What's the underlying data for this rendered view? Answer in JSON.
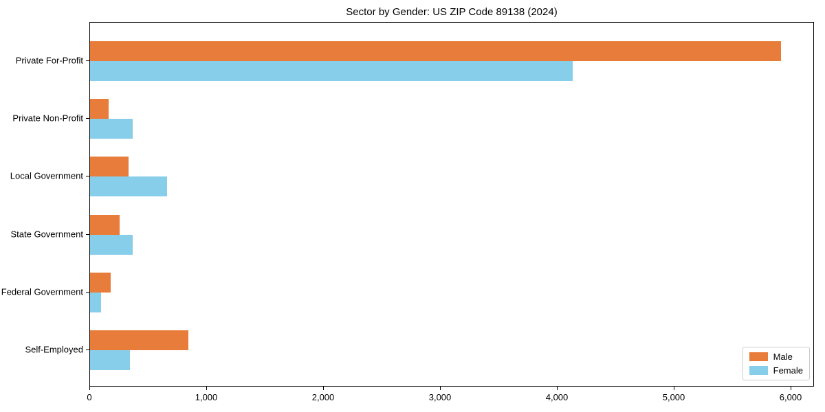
{
  "title": "Sector by Gender: US ZIP Code 89138 (2024)",
  "colors": {
    "male": "#e87d3b",
    "female": "#87ceeb",
    "spine": "#000000",
    "background": "#ffffff",
    "legend_border": "#cccccc"
  },
  "chart_data": {
    "type": "bar",
    "orientation": "horizontal",
    "title": "Sector by Gender: US ZIP Code 89138 (2024)",
    "categories": [
      "Private For-Profit",
      "Private Non-Profit",
      "Local Government",
      "State Government",
      "Federal Government",
      "Self-Employed"
    ],
    "series": [
      {
        "name": "Male",
        "color": "#e87d3b",
        "values": [
          5910,
          160,
          330,
          250,
          175,
          840
        ]
      },
      {
        "name": "Female",
        "color": "#87ceeb",
        "values": [
          4130,
          365,
          660,
          365,
          95,
          340
        ]
      }
    ],
    "xlabel": "",
    "ylabel": "",
    "xlim": [
      0,
      6200
    ],
    "xticks": [
      0,
      1000,
      2000,
      3000,
      4000,
      5000,
      6000
    ],
    "xtick_labels": [
      "0",
      "1,000",
      "2,000",
      "3,000",
      "4,000",
      "5,000",
      "6,000"
    ],
    "grid": false,
    "legend_position": "lower right"
  }
}
